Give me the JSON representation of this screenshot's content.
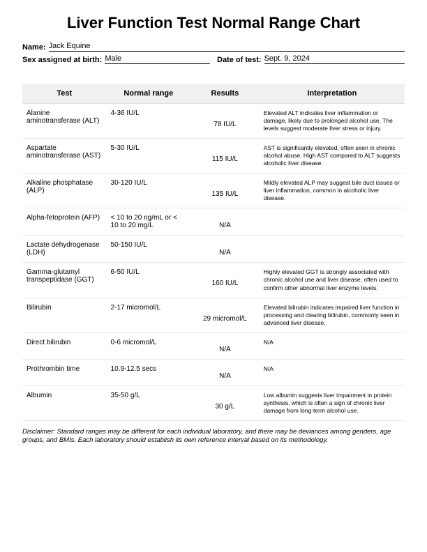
{
  "title": "Liver Function Test Normal Range Chart",
  "form": {
    "name_label": "Name:",
    "name_value": "Jack Equine",
    "sex_label": "Sex assigned at birth:",
    "sex_value": "Male",
    "date_label": "Date of test:",
    "date_value": "Sept. 9, 2024"
  },
  "table": {
    "headers": {
      "test": "Test",
      "range": "Normal range",
      "results": "Results",
      "interp": "Interpretation"
    },
    "rows": [
      {
        "test": "Alanine aminotransferase (ALT)",
        "range": "4-36 IU/L",
        "result": "78 IU/L",
        "interp": "Elevated ALT indicates liver inflammation or damage, likely due to prolonged alcohol use. The levels suggest moderate liver stress or injury."
      },
      {
        "test": "Aspartate aminotransferase (AST)",
        "range": "5-30 IU/L",
        "result": "115 IU/L",
        "interp": "AST is significantly elevated, often seen in chronic alcohol abuse. High AST compared to ALT suggests alcoholic liver disease."
      },
      {
        "test": "Alkaline phosphatase (ALP)",
        "range": "30-120 IU/L",
        "result": "135 IU/L",
        "interp": "Mildly elevated ALP may suggest bile duct issues or liver inflammation, common in alcoholic liver disease."
      },
      {
        "test": "Alpha-fetoprotein (AFP)",
        "range": "< 10 to 20 ng/mL or < 10 to 20 mg/L",
        "result": "N/A",
        "interp": ""
      },
      {
        "test": "Lactate dehydrogenase (LDH)",
        "range": "50-150 IU/L",
        "result": "N/A",
        "interp": ""
      },
      {
        "test": "Gamma-glutamyl transpeptidase (GGT)",
        "range": "6-50 IU/L",
        "result": "160 IU/L",
        "interp": "Highly elevated GGT is strongly associated with chronic alcohol use and liver disease, often used to confirm other abnormal liver enzyme levels."
      },
      {
        "test": "Bilirubin",
        "range": "2-17 micromol/L",
        "result": "29 micromol/L",
        "interp": "Elevated bilirubin indicates impaired liver function in processing and clearing bilirubin, commonly seen in advanced liver disease."
      },
      {
        "test": "Direct bilirubin",
        "range": "0-6 micromol/L",
        "result": "N/A",
        "interp": "N/A"
      },
      {
        "test": "Prothrombin time",
        "range": "10.9-12.5 secs",
        "result": "N/A",
        "interp": "N/A"
      },
      {
        "test": "Albumin",
        "range": "35-50 g/L",
        "result": "30 g/L",
        "interp": "Low albumin suggests liver impairment in protein synthesis, which is often a sign of chronic liver damage from long-term alcohol use."
      }
    ]
  },
  "disclaimer": "Disclaimer: Standard ranges may be different for each individual laboratory, and there may be deviances among genders, age groups, and BMIs. Each laboratory should establish its own reference interval based on its methodology."
}
